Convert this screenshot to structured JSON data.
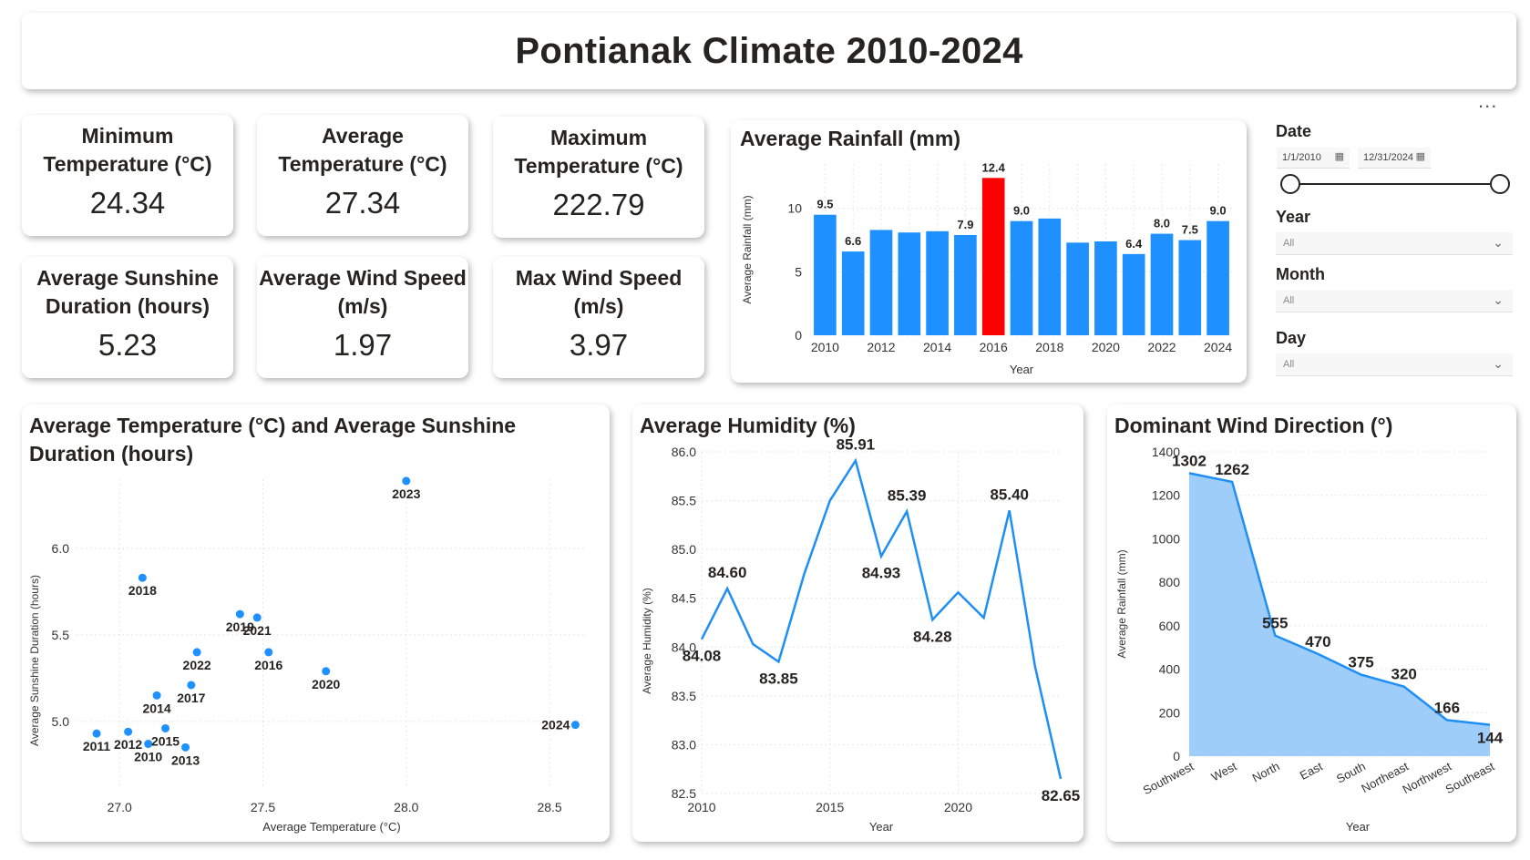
{
  "dashboard": {
    "title": "Pontianak Climate 2010-2024"
  },
  "kpis": [
    {
      "label": "Minimum Temperature (°C)",
      "value": "24.34"
    },
    {
      "label": "Average Temperature (°C)",
      "value": "27.34"
    },
    {
      "label": "Maximum Temperature (°C)",
      "value": "222.79"
    },
    {
      "label": "Average Sunshine Duration (hours)",
      "value": "5.23"
    },
    {
      "label": "Average Wind Speed (m/s)",
      "value": "1.97"
    },
    {
      "label": "Max Wind Speed (m/s)",
      "value": "3.97"
    }
  ],
  "filters": {
    "date": {
      "title": "Date",
      "start": "1/1/2010",
      "end": "12/31/2024"
    },
    "year": {
      "title": "Year",
      "value": "All"
    },
    "month": {
      "title": "Month",
      "value": "All"
    },
    "day": {
      "title": "Day",
      "value": "All"
    },
    "more": "..."
  },
  "colors": {
    "bar": "#1e90ff",
    "highlight": "#ff0000",
    "area": "#9fcdfa",
    "line": "#1e8ff5"
  },
  "chart_data": [
    {
      "type": "bar",
      "title": "Average Rainfall (mm)",
      "xlabel": "Year",
      "ylabel": "Average Rainfall (mm)",
      "categories": [
        2010,
        2011,
        2012,
        2013,
        2014,
        2015,
        2016,
        2017,
        2018,
        2019,
        2020,
        2021,
        2022,
        2023,
        2024
      ],
      "values": [
        9.5,
        6.6,
        8.3,
        8.1,
        8.2,
        7.9,
        12.4,
        9.0,
        9.2,
        7.3,
        7.4,
        6.4,
        8.0,
        7.5,
        9.0
      ],
      "data_labels": [
        "9.5",
        "6.6",
        "",
        "",
        "",
        "7.9",
        "12.4",
        "9.0",
        "",
        "",
        "",
        "6.4",
        "8.0",
        "7.5",
        "9.0"
      ],
      "highlight_category": 2016,
      "xticks": [
        2010,
        2012,
        2014,
        2016,
        2018,
        2020,
        2022,
        2024
      ],
      "yticks": [
        0,
        5,
        10
      ],
      "ylim": [
        0,
        13.5
      ]
    },
    {
      "type": "scatter",
      "title": "Average Temperature (°C) and Average Sunshine Duration (hours)",
      "xlabel": "Average Temperature (°C)",
      "ylabel": "Average Sunshine Duration (hours)",
      "points": [
        {
          "label": "2010",
          "x": 27.1,
          "y": 4.87
        },
        {
          "label": "2011",
          "x": 26.92,
          "y": 4.93
        },
        {
          "label": "2012",
          "x": 27.03,
          "y": 4.94
        },
        {
          "label": "2013",
          "x": 27.23,
          "y": 4.85
        },
        {
          "label": "2014",
          "x": 27.13,
          "y": 5.15
        },
        {
          "label": "2015",
          "x": 27.16,
          "y": 4.96
        },
        {
          "label": "2016",
          "x": 27.52,
          "y": 5.4
        },
        {
          "label": "2017",
          "x": 27.25,
          "y": 5.21
        },
        {
          "label": "2018",
          "x": 27.08,
          "y": 5.83
        },
        {
          "label": "2019",
          "x": 27.42,
          "y": 5.62
        },
        {
          "label": "2020",
          "x": 27.72,
          "y": 5.29
        },
        {
          "label": "2021",
          "x": 27.48,
          "y": 5.6
        },
        {
          "label": "2022",
          "x": 27.27,
          "y": 5.4
        },
        {
          "label": "2023",
          "x": 28.0,
          "y": 6.39
        },
        {
          "label": "2024",
          "x": 28.59,
          "y": 4.98
        }
      ],
      "xticks": [
        27.0,
        27.5,
        28.0,
        28.5
      ],
      "yticks": [
        5.0,
        5.5,
        6.0
      ],
      "xlim": [
        26.85,
        28.63
      ],
      "ylim": [
        4.62,
        6.4
      ]
    },
    {
      "type": "line",
      "title": "Average Humidity (%)",
      "xlabel": "Year",
      "ylabel": "Average Humidity (%)",
      "x": [
        2010,
        2011,
        2012,
        2013,
        2014,
        2015,
        2016,
        2017,
        2018,
        2019,
        2020,
        2021,
        2022,
        2023,
        2024
      ],
      "values": [
        84.08,
        84.6,
        84.03,
        83.85,
        84.75,
        85.5,
        85.91,
        84.93,
        85.39,
        84.28,
        84.56,
        84.3,
        85.4,
        83.8,
        82.65
      ],
      "data_labels": [
        "84.08",
        "84.60",
        "",
        "83.85",
        "",
        "",
        "85.91",
        "84.93",
        "85.39",
        "84.28",
        "",
        "",
        "85.40",
        "",
        "82.65"
      ],
      "xticks": [
        2010,
        2015,
        2020
      ],
      "yticks": [
        82.5,
        83.0,
        83.5,
        84.0,
        84.5,
        85.0,
        85.5,
        86.0
      ],
      "ylim": [
        82.5,
        86.0
      ]
    },
    {
      "type": "area",
      "title": "Dominant Wind Direction (°)",
      "xlabel": "Year",
      "ylabel": "Average Rainfall (mm)",
      "categories": [
        "Southwest",
        "West",
        "North",
        "East",
        "South",
        "Northeast",
        "Northwest",
        "Southeast"
      ],
      "values": [
        1302,
        1262,
        555,
        470,
        375,
        320,
        166,
        144
      ],
      "yticks": [
        0,
        200,
        400,
        600,
        800,
        1000,
        1200,
        1400
      ],
      "ylim": [
        0,
        1400
      ]
    }
  ]
}
